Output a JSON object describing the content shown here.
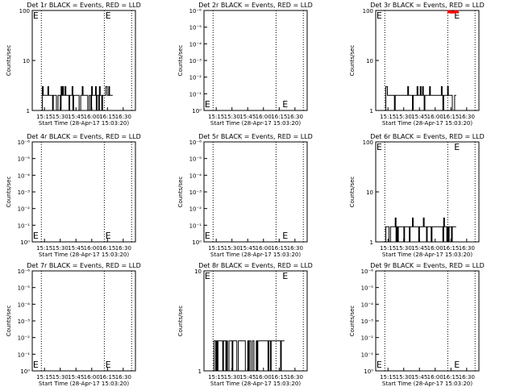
{
  "figure": {
    "panels": [
      {
        "title": "Det 1r BLACK = Events, RED = LLD",
        "ylabel": "Counts/sec",
        "xlabel": "Start Time (28-Apr-17 15:03:20)",
        "xticks": [
          "15:15",
          "15:30",
          "15:45",
          "16:00",
          "16:15",
          "16:30"
        ],
        "yticks": [
          "1",
          "10",
          "100"
        ]
      },
      {
        "title": "Det 2r BLACK = Events, RED = LLD",
        "ylabel": "Counts/sec",
        "xlabel": "Start Time (28-Apr-17 15:03:20)",
        "xticks": [
          "15:15",
          "15:30",
          "15:45",
          "16:00",
          "16:15",
          "16:30"
        ],
        "yticks": [
          "10⁰",
          "10⁻¹",
          "10⁻²",
          "10⁻³",
          "10⁻⁴",
          "10⁻⁵",
          "10⁻⁶"
        ]
      },
      {
        "title": "Det 3r BLACK = Events, RED = LLD",
        "ylabel": "Counts/sec",
        "xlabel": "Start Time (28-Apr-17 15:03:20)",
        "xticks": [
          "15:15",
          "15:30",
          "15:45",
          "16:00",
          "16:15",
          "16:30"
        ],
        "yticks": [
          "1",
          "10",
          "100"
        ]
      },
      {
        "title": "Det 4r BLACK = Events, RED = LLD",
        "ylabel": "Counts/sec",
        "xlabel": "Start Time (28-Apr-17 15:03:20)",
        "xticks": [
          "15:15",
          "15:30",
          "15:45",
          "16:00",
          "16:15",
          "16:30"
        ],
        "yticks": [
          "10⁰",
          "10⁻¹",
          "10⁻²",
          "10⁻³",
          "10⁻⁴",
          "10⁻⁵",
          "10⁻⁶"
        ]
      },
      {
        "title": "Det 5r BLACK = Events, RED = LLD",
        "ylabel": "Counts/sec",
        "xlabel": "Start Time (28-Apr-17 15:03:20)",
        "xticks": [
          "15:15",
          "15:30",
          "15:45",
          "16:00",
          "16:15",
          "16:30"
        ],
        "yticks": [
          "10⁰",
          "10⁻¹",
          "10⁻²",
          "10⁻³",
          "10⁻⁴",
          "10⁻⁵",
          "10⁻⁶"
        ]
      },
      {
        "title": "Det 6r BLACK = Events, RED = LLD",
        "ylabel": "Counts/sec",
        "xlabel": "Start Time (28-Apr-17 15:03:20)",
        "xticks": [
          "15:15",
          "15:30",
          "15:45",
          "16:00",
          "16:15",
          "16:30"
        ],
        "yticks": [
          "1",
          "10",
          "100"
        ]
      },
      {
        "title": "Det 7r BLACK = Events, RED = LLD",
        "ylabel": "Counts/sec",
        "xlabel": "Start Time (28-Apr-17 15:03:20)",
        "xticks": [
          "15:15",
          "15:30",
          "15:45",
          "16:00",
          "16:15",
          "16:30"
        ],
        "yticks": [
          "10⁰",
          "10⁻¹",
          "10⁻²",
          "10⁻³",
          "10⁻⁴",
          "10⁻⁵",
          "10⁻⁶"
        ]
      },
      {
        "title": "Det 8r BLACK = Events, RED = LLD",
        "ylabel": "Counts/sec",
        "xlabel": "Start Time (28-Apr-17 15:03:20)",
        "xticks": [
          "15:15",
          "15:30",
          "15:45",
          "16:00",
          "16:15",
          "16:30"
        ],
        "yticks": [
          "1",
          "10"
        ]
      },
      {
        "title": "Det 9r BLACK = Events, RED = LLD",
        "ylabel": "Counts/sec",
        "xlabel": "Start Time (28-Apr-17 15:03:20)",
        "xticks": [
          "15:15",
          "15:30",
          "15:45",
          "16:00",
          "16:15",
          "16:30"
        ],
        "yticks": [
          "10⁰",
          "10⁻¹",
          "10⁻²",
          "10⁻³",
          "10⁻⁴",
          "10⁻⁵",
          "10⁻⁶"
        ]
      }
    ]
  },
  "chart_data": [
    {
      "type": "line",
      "panel": "Det 1r",
      "title": "Det 1r BLACK = Events, RED = LLD",
      "xlabel": "Start Time (28-Apr-17 15:03:20)",
      "ylabel": "Counts/sec",
      "y_scale": "log",
      "ylim": [
        1,
        100
      ],
      "xlim": [
        "15:03:20",
        "16:41:40"
      ],
      "series_colors": {
        "events": "#000000",
        "lld": "#ff0000"
      },
      "markers": [
        {
          "label": "E",
          "x": "15:04"
        },
        {
          "label": "E",
          "x": "16:13"
        }
      ],
      "vertical_dotted_lines": [
        "15:12",
        "16:12",
        "16:38"
      ],
      "series": [
        {
          "name": "BLACK = Events",
          "color": "#000000",
          "x_range": [
            "15:13",
            "16:20"
          ],
          "y_levels": [
            1,
            2,
            3
          ]
        }
      ]
    },
    {
      "type": "line",
      "panel": "Det 2r",
      "title": "Det 2r BLACK = Events, RED = LLD",
      "xlabel": "Start Time (28-Apr-17 15:03:20)",
      "ylabel": "Counts/sec",
      "y_scale": "log",
      "ylim": [
        1e-06,
        1
      ],
      "xlim": [
        "15:03:20",
        "16:41:40"
      ],
      "markers": [
        {
          "label": "E",
          "x": "15:04"
        },
        {
          "label": "E",
          "x": "16:18"
        }
      ],
      "vertical_dotted_lines": [
        "15:12",
        "16:12",
        "16:38"
      ],
      "series": []
    },
    {
      "type": "line",
      "panel": "Det 3r",
      "title": "Det 3r BLACK = Events, RED = LLD",
      "xlabel": "Start Time (28-Apr-17 15:03:20)",
      "ylabel": "Counts/sec",
      "y_scale": "log",
      "ylim": [
        1,
        100
      ],
      "xlim": [
        "15:03:20",
        "16:41:40"
      ],
      "series_colors": {
        "events": "#000000",
        "lld": "#ff0000"
      },
      "markers": [
        {
          "label": "E",
          "x": "15:04"
        },
        {
          "label": "E",
          "x": "16:18"
        }
      ],
      "vertical_dotted_lines": [
        "15:12",
        "16:12",
        "16:38"
      ],
      "series": [
        {
          "name": "BLACK = Events",
          "color": "#000000",
          "x_range": [
            "15:13",
            "16:20"
          ],
          "y_levels": [
            1,
            2,
            3
          ]
        },
        {
          "name": "RED = LLD",
          "color": "#ff0000",
          "x_range": [
            "16:12",
            "16:22"
          ],
          "y_levels": [
            100
          ]
        }
      ]
    },
    {
      "type": "line",
      "panel": "Det 4r",
      "title": "Det 4r BLACK = Events, RED = LLD",
      "xlabel": "Start Time (28-Apr-17 15:03:20)",
      "ylabel": "Counts/sec",
      "y_scale": "log",
      "ylim": [
        1e-06,
        1
      ],
      "xlim": [
        "15:03:20",
        "16:41:40"
      ],
      "markers": [
        {
          "label": "E",
          "x": "15:04"
        },
        {
          "label": "E",
          "x": "16:13"
        }
      ],
      "vertical_dotted_lines": [
        "15:12",
        "16:12",
        "16:38"
      ],
      "series": []
    },
    {
      "type": "line",
      "panel": "Det 5r",
      "title": "Det 5r BLACK = Events, RED = LLD",
      "xlabel": "Start Time (28-Apr-17 15:03:20)",
      "ylabel": "Counts/sec",
      "y_scale": "log",
      "ylim": [
        1e-06,
        1
      ],
      "xlim": [
        "15:03:20",
        "16:41:40"
      ],
      "markers": [
        {
          "label": "E",
          "x": "15:04"
        },
        {
          "label": "E",
          "x": "16:18"
        }
      ],
      "vertical_dotted_lines": [
        "15:12",
        "16:12",
        "16:38"
      ],
      "series": []
    },
    {
      "type": "line",
      "panel": "Det 6r",
      "title": "Det 6r BLACK = Events, RED = LLD",
      "xlabel": "Start Time (28-Apr-17 15:03:20)",
      "ylabel": "Counts/sec",
      "y_scale": "log",
      "ylim": [
        1,
        100
      ],
      "xlim": [
        "15:03:20",
        "16:41:40"
      ],
      "series_colors": {
        "events": "#000000",
        "lld": "#ff0000"
      },
      "markers": [
        {
          "label": "E",
          "x": "15:04"
        },
        {
          "label": "E",
          "x": "16:18"
        }
      ],
      "vertical_dotted_lines": [
        "15:12",
        "16:12",
        "16:38"
      ],
      "series": [
        {
          "name": "BLACK = Events",
          "color": "#000000",
          "x_range": [
            "15:13",
            "16:20"
          ],
          "y_levels": [
            1,
            2,
            3
          ]
        }
      ]
    },
    {
      "type": "line",
      "panel": "Det 7r",
      "title": "Det 7r BLACK = Events, RED = LLD",
      "xlabel": "Start Time (28-Apr-17 15:03:20)",
      "ylabel": "Counts/sec",
      "y_scale": "log",
      "ylim": [
        1e-06,
        1
      ],
      "xlim": [
        "15:03:20",
        "16:41:40"
      ],
      "markers": [
        {
          "label": "E",
          "x": "15:04"
        },
        {
          "label": "E",
          "x": "16:13"
        }
      ],
      "vertical_dotted_lines": [
        "15:12",
        "16:12",
        "16:38"
      ],
      "series": []
    },
    {
      "type": "line",
      "panel": "Det 8r",
      "title": "Det 8r BLACK = Events, RED = LLD",
      "xlabel": "Start Time (28-Apr-17 15:03:20)",
      "ylabel": "Counts/sec",
      "y_scale": "log",
      "ylim": [
        1,
        10
      ],
      "xlim": [
        "15:03:20",
        "16:41:40"
      ],
      "series_colors": {
        "events": "#000000",
        "lld": "#ff0000"
      },
      "markers": [
        {
          "label": "E",
          "x": "15:04"
        },
        {
          "label": "E",
          "x": "16:18"
        }
      ],
      "vertical_dotted_lines": [
        "15:12",
        "16:12",
        "16:38"
      ],
      "series": [
        {
          "name": "BLACK = Events",
          "color": "#000000",
          "x_range": [
            "15:13",
            "16:20"
          ],
          "y_levels": [
            1,
            2
          ]
        }
      ]
    },
    {
      "type": "line",
      "panel": "Det 9r",
      "title": "Det 9r BLACK = Events, RED = LLD",
      "xlabel": "Start Time (28-Apr-17 15:03:20)",
      "ylabel": "Counts/sec",
      "y_scale": "log",
      "ylim": [
        1e-06,
        1
      ],
      "xlim": [
        "15:03:20",
        "16:41:40"
      ],
      "markers": [
        {
          "label": "E",
          "x": "15:04"
        },
        {
          "label": "E",
          "x": "16:18"
        }
      ],
      "vertical_dotted_lines": [
        "15:12",
        "16:12",
        "16:38"
      ],
      "series": []
    }
  ]
}
